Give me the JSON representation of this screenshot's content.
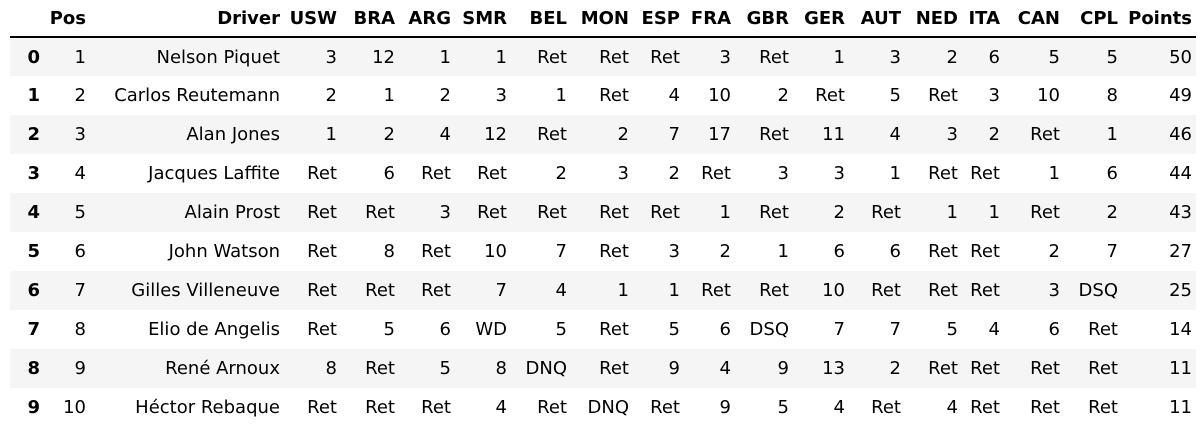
{
  "table": {
    "index_header": "",
    "columns": [
      "Pos",
      "Driver",
      "USW",
      "BRA",
      "ARG",
      "SMR",
      "BEL",
      "MON",
      "ESP",
      "FRA",
      "GBR",
      "GER",
      "AUT",
      "NED",
      "ITA",
      "CAN",
      "CPL",
      "Points"
    ],
    "rows": [
      {
        "index": "0",
        "cells": [
          "1",
          "Nelson Piquet",
          "3",
          "12",
          "1",
          "1",
          "Ret",
          "Ret",
          "Ret",
          "3",
          "Ret",
          "1",
          "3",
          "2",
          "6",
          "5",
          "5",
          "50"
        ]
      },
      {
        "index": "1",
        "cells": [
          "2",
          "Carlos Reutemann",
          "2",
          "1",
          "2",
          "3",
          "1",
          "Ret",
          "4",
          "10",
          "2",
          "Ret",
          "5",
          "Ret",
          "3",
          "10",
          "8",
          "49"
        ]
      },
      {
        "index": "2",
        "cells": [
          "3",
          "Alan Jones",
          "1",
          "2",
          "4",
          "12",
          "Ret",
          "2",
          "7",
          "17",
          "Ret",
          "11",
          "4",
          "3",
          "2",
          "Ret",
          "1",
          "46"
        ]
      },
      {
        "index": "3",
        "cells": [
          "4",
          "Jacques Laffite",
          "Ret",
          "6",
          "Ret",
          "Ret",
          "2",
          "3",
          "2",
          "Ret",
          "3",
          "3",
          "1",
          "Ret",
          "Ret",
          "1",
          "6",
          "44"
        ]
      },
      {
        "index": "4",
        "cells": [
          "5",
          "Alain Prost",
          "Ret",
          "Ret",
          "3",
          "Ret",
          "Ret",
          "Ret",
          "Ret",
          "1",
          "Ret",
          "2",
          "Ret",
          "1",
          "1",
          "Ret",
          "2",
          "43"
        ]
      },
      {
        "index": "5",
        "cells": [
          "6",
          "John Watson",
          "Ret",
          "8",
          "Ret",
          "10",
          "7",
          "Ret",
          "3",
          "2",
          "1",
          "6",
          "6",
          "Ret",
          "Ret",
          "2",
          "7",
          "27"
        ]
      },
      {
        "index": "6",
        "cells": [
          "7",
          "Gilles Villeneuve",
          "Ret",
          "Ret",
          "Ret",
          "7",
          "4",
          "1",
          "1",
          "Ret",
          "Ret",
          "10",
          "Ret",
          "Ret",
          "Ret",
          "3",
          "DSQ",
          "25"
        ]
      },
      {
        "index": "7",
        "cells": [
          "8",
          "Elio de Angelis",
          "Ret",
          "5",
          "6",
          "WD",
          "5",
          "Ret",
          "5",
          "6",
          "DSQ",
          "7",
          "7",
          "5",
          "4",
          "6",
          "Ret",
          "14"
        ]
      },
      {
        "index": "8",
        "cells": [
          "9",
          "René Arnoux",
          "8",
          "Ret",
          "5",
          "8",
          "DNQ",
          "Ret",
          "9",
          "4",
          "9",
          "13",
          "2",
          "Ret",
          "Ret",
          "Ret",
          "Ret",
          "11"
        ]
      },
      {
        "index": "9",
        "cells": [
          "10",
          "Héctor Rebaque",
          "Ret",
          "Ret",
          "Ret",
          "4",
          "Ret",
          "DNQ",
          "Ret",
          "9",
          "5",
          "4",
          "Ret",
          "4",
          "Ret",
          "Ret",
          "Ret",
          "11"
        ]
      }
    ]
  }
}
